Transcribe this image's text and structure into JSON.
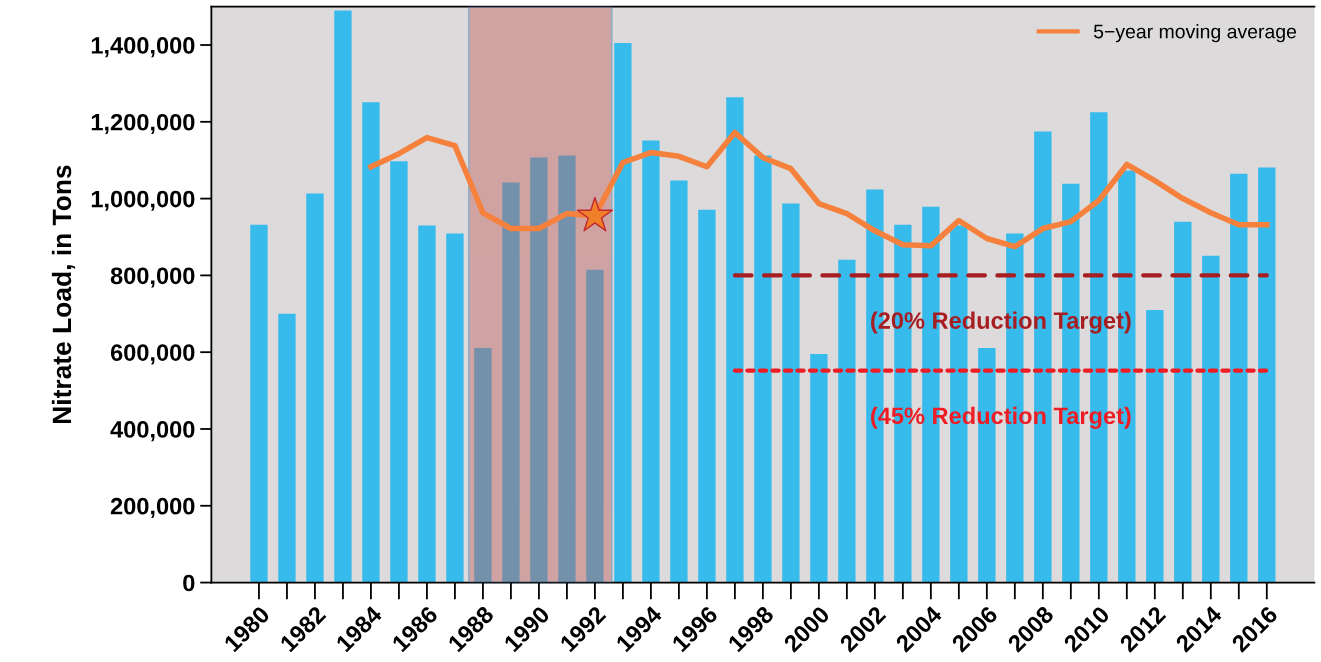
{
  "chart_data": {
    "type": "bar",
    "ylabel": "Nitrate Load, in Tons",
    "x": [
      1980,
      1981,
      1982,
      1983,
      1984,
      1985,
      1986,
      1987,
      1988,
      1989,
      1990,
      1991,
      1992,
      1993,
      1994,
      1995,
      1996,
      1997,
      1998,
      1999,
      2000,
      2001,
      2002,
      2003,
      2004,
      2005,
      2006,
      2007,
      2008,
      2009,
      2010,
      2011,
      2012,
      2013,
      2014,
      2015,
      2016
    ],
    "series": [
      {
        "color": "#36bbec",
        "values": [
          932000,
          700000,
          1013000,
          1490000,
          1251000,
          1097000,
          930000,
          909000,
          611000,
          1042000,
          1107000,
          1112000,
          815000,
          1405000,
          1151000,
          1047000,
          971000,
          1264000,
          1112000,
          987000,
          595000,
          841000,
          1024000,
          932000,
          979000,
          930000,
          611000,
          909000,
          1175000,
          1039000,
          1225000,
          1073000,
          710000,
          940000,
          851000,
          1065000,
          1081000
        ]
      },
      {
        "type": "line",
        "name": "5−year moving average",
        "color": "#f5813d",
        "x": [
          1984,
          1985,
          1986,
          1987,
          1988,
          1989,
          1990,
          1991,
          1992,
          1993,
          1994,
          1995,
          1996,
          1997,
          1998,
          1999,
          2000,
          2001,
          2002,
          2003,
          2004,
          2005,
          2006,
          2007,
          2008,
          2009,
          2010,
          2011,
          2012,
          2013,
          2014,
          2015,
          2016
        ],
        "values": [
          1083000,
          1117000,
          1159000,
          1138000,
          963000,
          922000,
          922000,
          961000,
          955000,
          1094000,
          1120000,
          1110000,
          1083000,
          1172000,
          1107000,
          1078000,
          987000,
          961000,
          916000,
          880000,
          877000,
          943000,
          896000,
          875000,
          922000,
          940000,
          995000,
          1089000,
          1047000,
          1000000,
          963000,
          932000,
          932000
        ]
      },
      {
        "type": "scatter",
        "marker": "star",
        "color": "#f07f2a",
        "x": [
          1992
        ],
        "values": [
          955000
        ]
      },
      {
        "type": "line",
        "line_style": "dashed",
        "color": "#a61e22",
        "x": [
          1997,
          2016
        ],
        "values": [
          800000,
          800000
        ]
      },
      {
        "type": "line",
        "line_style": "dotted",
        "color": "#ee1c25",
        "x": [
          1997,
          2016
        ],
        "values": [
          552000,
          552000
        ]
      }
    ],
    "bands": [
      {
        "axis": "x",
        "from": 1987.5,
        "to": 1992.6,
        "color": "#c06060"
      }
    ],
    "annotations": [
      "(20% Reduction Target)",
      "(45% Reduction Target)"
    ],
    "xlim": [
      1978.3,
      2017.7
    ],
    "xticks": [
      1980,
      1982,
      1984,
      1986,
      1988,
      1990,
      1992,
      1994,
      1996,
      1998,
      2000,
      2002,
      2004,
      2006,
      2008,
      2010,
      2012,
      2014,
      2016
    ],
    "ylim": [
      0,
      1500000
    ],
    "yticks": [
      {
        "value": 0,
        "label": "0"
      },
      {
        "value": 200000,
        "label": "200,000"
      },
      {
        "value": 400000,
        "label": "400,000"
      },
      {
        "value": 600000,
        "label": "600,000"
      },
      {
        "value": 800000,
        "label": "800,000"
      },
      {
        "value": 1000000,
        "label": "1,000,000"
      },
      {
        "value": 1200000,
        "label": "1,200,000"
      },
      {
        "value": 1400000,
        "label": "1,400,000"
      }
    ],
    "legend": "top right",
    "grid": false
  }
}
